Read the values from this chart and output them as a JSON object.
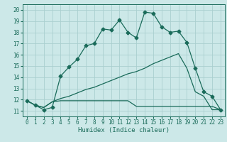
{
  "xlabel": "Humidex (Indice chaleur)",
  "xlim": [
    -0.5,
    23.5
  ],
  "ylim": [
    10.5,
    20.5
  ],
  "xticks": [
    0,
    1,
    2,
    3,
    4,
    5,
    6,
    7,
    8,
    9,
    10,
    11,
    12,
    13,
    14,
    15,
    16,
    17,
    18,
    19,
    20,
    21,
    22,
    23
  ],
  "yticks": [
    11,
    12,
    13,
    14,
    15,
    16,
    17,
    18,
    19,
    20
  ],
  "bg_color": "#cce8e8",
  "line_color": "#1a6b5a",
  "grid_color": "#aacfcf",
  "line1_y": [
    11.9,
    11.5,
    11.1,
    11.3,
    14.1,
    14.9,
    15.6,
    16.8,
    17.0,
    18.3,
    18.2,
    19.1,
    18.0,
    17.5,
    19.8,
    19.7,
    18.5,
    18.0,
    18.1,
    17.1,
    14.8,
    12.7,
    12.3,
    11.1
  ],
  "line2_y": [
    11.9,
    11.5,
    11.3,
    11.8,
    11.9,
    11.9,
    11.9,
    11.9,
    11.9,
    11.9,
    11.9,
    11.9,
    11.9,
    11.4,
    11.4,
    11.4,
    11.4,
    11.4,
    11.4,
    11.4,
    11.4,
    11.4,
    11.4,
    11.1
  ],
  "line3_y": [
    11.9,
    11.5,
    11.3,
    11.8,
    12.1,
    12.3,
    12.6,
    12.9,
    13.1,
    13.4,
    13.7,
    14.0,
    14.3,
    14.5,
    14.8,
    15.2,
    15.5,
    15.8,
    16.1,
    14.8,
    12.7,
    12.3,
    11.1,
    11.1
  ],
  "marker": "D",
  "marker_size": 2.5,
  "xlabel_fontsize": 6.5,
  "tick_fontsize": 5.5
}
